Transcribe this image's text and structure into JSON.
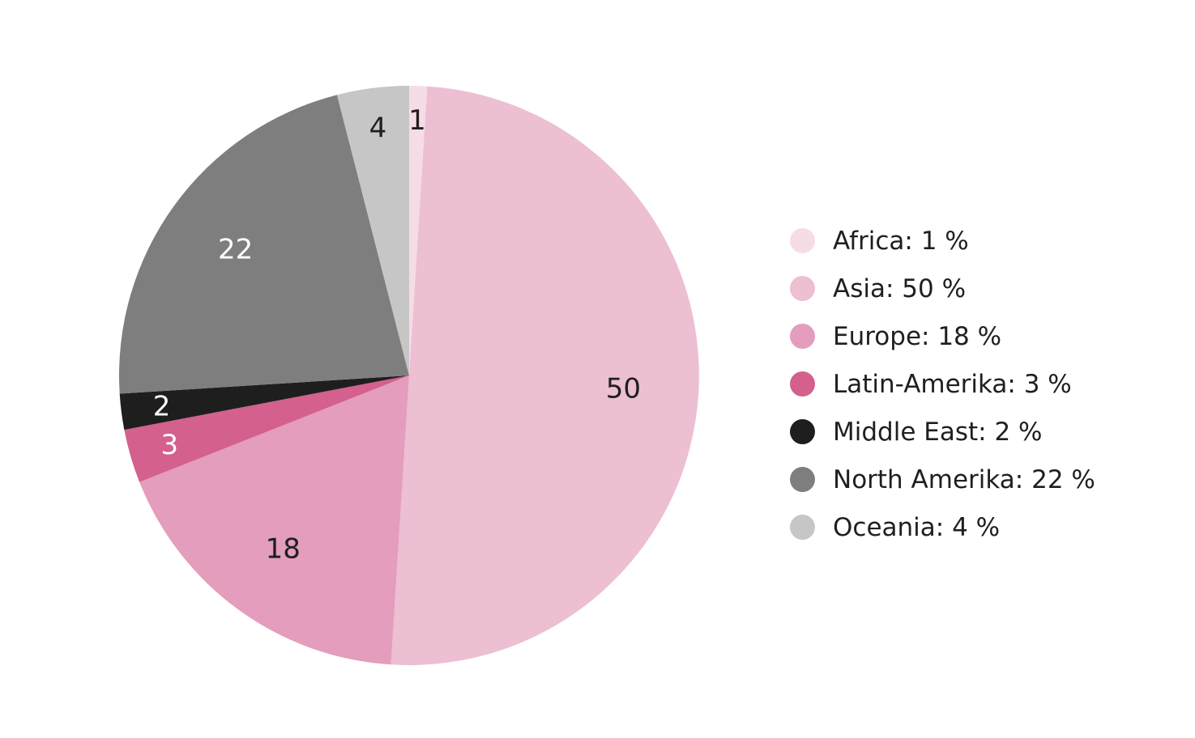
{
  "chart_data": {
    "type": "pie",
    "title": "",
    "categories": [
      "Africa",
      "Asia",
      "Europe",
      "Latin-Amerika",
      "Middle East",
      "North Amerika",
      "Oceania"
    ],
    "values": [
      1,
      50,
      18,
      3,
      2,
      22,
      4
    ],
    "slice_labels": [
      "1",
      "50",
      "18",
      "3",
      "2",
      "22",
      "4"
    ],
    "colors": [
      "#f6dce6",
      "#ecbfd3",
      "#e49dbc",
      "#d4608d",
      "#1e1e1e",
      "#7e7e7e",
      "#c6c6c6"
    ],
    "label_colors": [
      "#1f1f1f",
      "#1f1f1f",
      "#1f1f1f",
      "#ffffff",
      "#ffffff",
      "#ffffff",
      "#1f1f1f"
    ],
    "legend": {
      "placement": "right",
      "entries": [
        "Africa: 1 %",
        "Asia: 50 %",
        "Europe: 18 %",
        "Latin-Amerika: 3 %",
        "Middle East: 2 %",
        "North Amerika: 22 %",
        "Oceania: 4 %"
      ]
    },
    "start_angle_deg": 0,
    "direction": "clockwise"
  }
}
